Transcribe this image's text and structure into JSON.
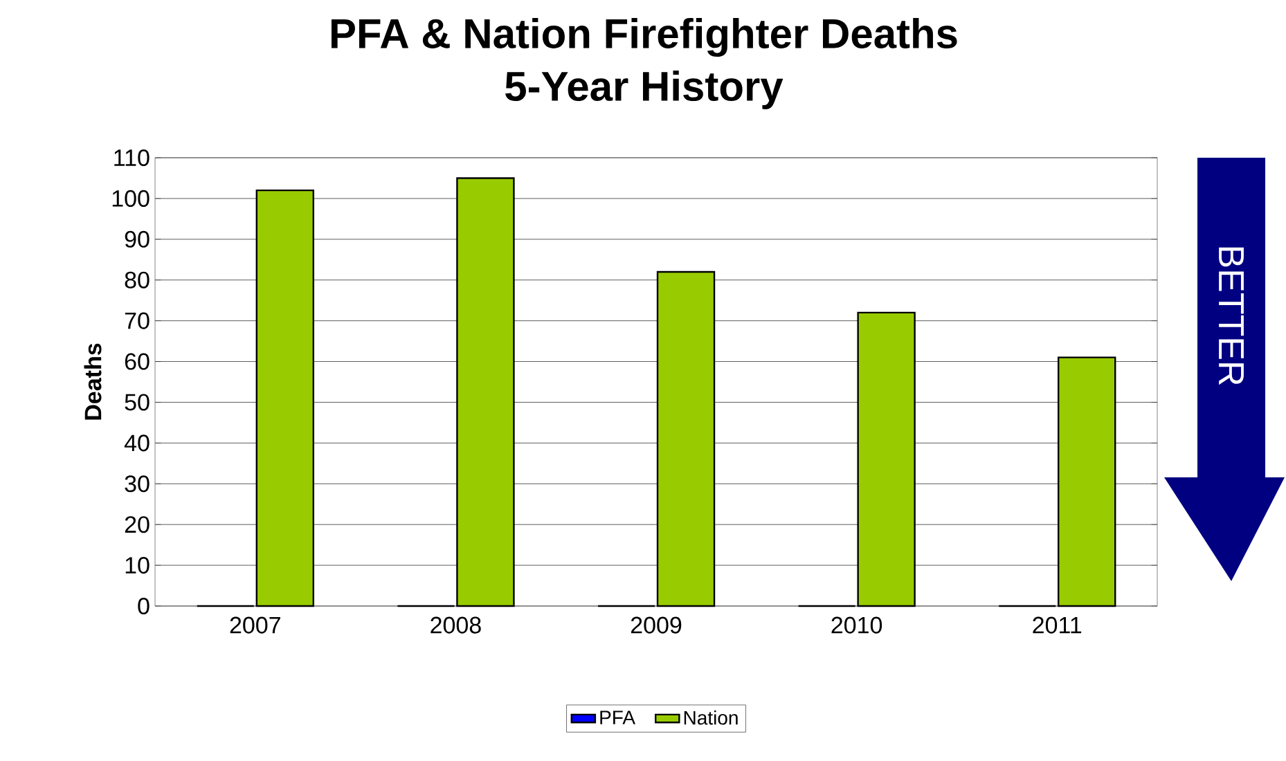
{
  "chart_data": {
    "type": "bar",
    "title": "PFA & Nation Firefighter Deaths",
    "subtitle": "5-Year History",
    "ylabel": "Deaths",
    "categories": [
      "2007",
      "2008",
      "2009",
      "2010",
      "2011"
    ],
    "series": [
      {
        "name": "PFA",
        "color": "#0000ff",
        "values": [
          0,
          0,
          0,
          0,
          0
        ]
      },
      {
        "name": "Nation",
        "color": "#99cc00",
        "values": [
          102,
          105,
          82,
          72,
          61
        ]
      }
    ],
    "ylim": [
      0,
      110
    ],
    "yticks": [
      0,
      10,
      20,
      30,
      40,
      50,
      60,
      70,
      80,
      90,
      100,
      110
    ],
    "grid": "y",
    "legend": "bottom",
    "annotations": [
      "BETTER"
    ]
  }
}
